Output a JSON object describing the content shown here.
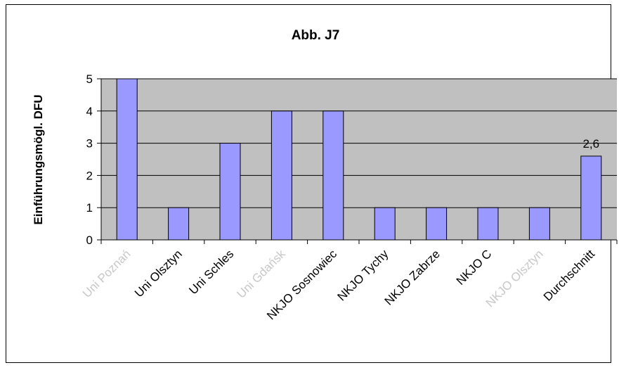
{
  "chart_data": {
    "type": "bar",
    "title": "Abb. J7",
    "xlabel": "",
    "ylabel": "Einführungsmögl. DFU",
    "categories": [
      "Uni Poznań",
      "Uni Olsztyn",
      "Uni Schles",
      "Uni Gdańsk",
      "NKJO Sosnowiec",
      "NKJO Tychy",
      "NKJO Zabrze",
      "NKJO C",
      "NKJO Olsztyn",
      "Durchschnitt"
    ],
    "values": [
      5,
      1,
      3,
      4,
      4,
      1,
      1,
      1,
      1,
      2.6
    ],
    "data_labels": [
      "",
      "",
      "",
      "",
      "",
      "",
      "",
      "",
      "",
      "2,6"
    ],
    "yticks": [
      "0",
      "1",
      "2",
      "3",
      "4",
      "5"
    ],
    "ylim": [
      0,
      5
    ],
    "grid": true,
    "colors": {
      "bar_fill": "#9999ff",
      "bar_stroke": "#000000",
      "plot_bg": "#c0c0c0",
      "grid": "#000000",
      "faded_label": "#c8c8c8"
    },
    "faded_categories": [
      0,
      3,
      8
    ]
  }
}
